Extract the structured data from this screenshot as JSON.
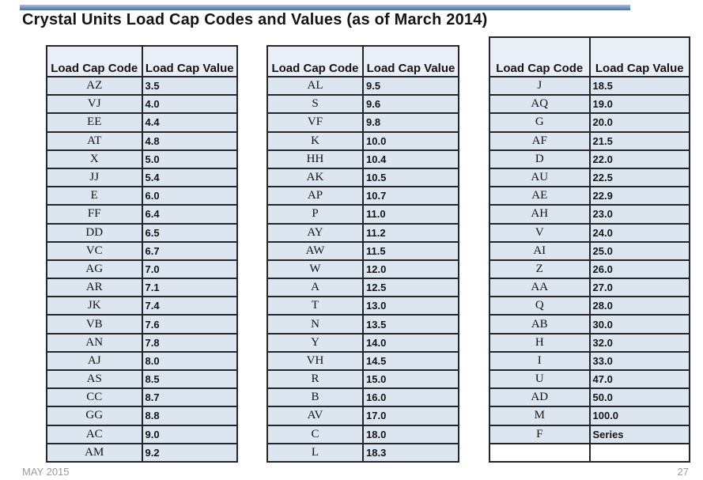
{
  "slide": {
    "title": "Crystal Units Load Cap Codes and Values (as of March 2014)",
    "footer_date": "MAY 2015",
    "page_number": "27"
  },
  "colors": {
    "top_bar_light": "#a9bed5",
    "top_bar_dark": "#4e6f9d",
    "header_fill": "#e9eff7",
    "cell_fill": "#dce6f1",
    "table_border": "#262626",
    "footer_text": "#9b9b9b"
  },
  "tables": [
    {
      "headers": [
        "Load Cap Code",
        "Load Cap Value"
      ],
      "rows": [
        [
          "AZ",
          "3.5"
        ],
        [
          "VJ",
          "4.0"
        ],
        [
          "EE",
          "4.4"
        ],
        [
          "AT",
          "4.8"
        ],
        [
          "X",
          "5.0"
        ],
        [
          "JJ",
          "5.4"
        ],
        [
          "E",
          "6.0"
        ],
        [
          "FF",
          "6.4"
        ],
        [
          "DD",
          "6.5"
        ],
        [
          "VC",
          "6.7"
        ],
        [
          "AG",
          "7.0"
        ],
        [
          "AR",
          "7.1"
        ],
        [
          "JK",
          "7.4"
        ],
        [
          "VB",
          "7.6"
        ],
        [
          "AN",
          "7.8"
        ],
        [
          "AJ",
          "8.0"
        ],
        [
          "AS",
          "8.5"
        ],
        [
          "CC",
          "8.7"
        ],
        [
          "GG",
          "8.8"
        ],
        [
          "AC",
          "9.0"
        ],
        [
          "AM",
          "9.2"
        ]
      ]
    },
    {
      "headers": [
        "Load Cap Code",
        "Load Cap Value"
      ],
      "rows": [
        [
          "AL",
          "9.5"
        ],
        [
          "S",
          "9.6"
        ],
        [
          "VF",
          "9.8"
        ],
        [
          "K",
          "10.0"
        ],
        [
          "HH",
          "10.4"
        ],
        [
          "AK",
          "10.5"
        ],
        [
          "AP",
          "10.7"
        ],
        [
          "P",
          "11.0"
        ],
        [
          "AY",
          "11.2"
        ],
        [
          "AW",
          "11.5"
        ],
        [
          "W",
          "12.0"
        ],
        [
          "A",
          "12.5"
        ],
        [
          "T",
          "13.0"
        ],
        [
          "N",
          "13.5"
        ],
        [
          "Y",
          "14.0"
        ],
        [
          "VH",
          "14.5"
        ],
        [
          "R",
          "15.0"
        ],
        [
          "B",
          "16.0"
        ],
        [
          "AV",
          "17.0"
        ],
        [
          "C",
          "18.0"
        ],
        [
          "L",
          "18.3"
        ]
      ]
    },
    {
      "headers": [
        "Load Cap Code",
        "Load Cap Value"
      ],
      "rows": [
        [
          "J",
          "18.5"
        ],
        [
          "AQ",
          "19.0"
        ],
        [
          "G",
          "20.0"
        ],
        [
          "AF",
          "21.5"
        ],
        [
          "D",
          "22.0"
        ],
        [
          "AU",
          "22.5"
        ],
        [
          "AE",
          "22.9"
        ],
        [
          "AH",
          "23.0"
        ],
        [
          "V",
          "24.0"
        ],
        [
          "AI",
          "25.0"
        ],
        [
          "Z",
          "26.0"
        ],
        [
          "AA",
          "27.0"
        ],
        [
          "Q",
          "28.0"
        ],
        [
          "AB",
          "30.0"
        ],
        [
          "H",
          "32.0"
        ],
        [
          "I",
          "33.0"
        ],
        [
          "U",
          "47.0"
        ],
        [
          "AD",
          "50.0"
        ],
        [
          "M",
          "100.0"
        ],
        [
          "F",
          "Series"
        ],
        [
          "",
          ""
        ]
      ]
    }
  ]
}
